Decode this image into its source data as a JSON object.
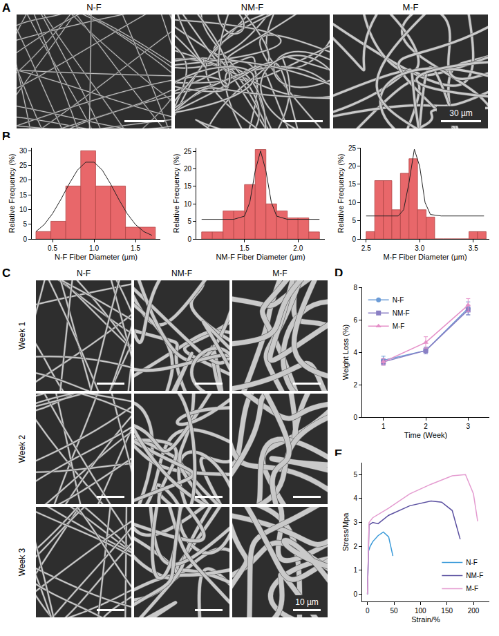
{
  "panel_A": {
    "label": "A",
    "titles": [
      "N-F",
      "NM-F",
      "M-F"
    ],
    "scale_bar": "30 µm"
  },
  "panel_C": {
    "label": "C",
    "titles": [
      "N-F",
      "NM-F",
      "M-F"
    ],
    "rows": [
      "Week 1",
      "Week 2",
      "Week 3"
    ],
    "scale_bar": "10 µm"
  },
  "chart_data": [
    {
      "panel": "B",
      "type": "histogram",
      "x_label": "N-F Fiber Diameter (µm)",
      "y_label": "Relative Frequency (%)",
      "bins": [
        0.3,
        0.48,
        0.66,
        0.84,
        1.02,
        1.2,
        1.38,
        1.56,
        1.74
      ],
      "counts": [
        2.5,
        6,
        18,
        30,
        18,
        18,
        4,
        4
      ],
      "color": "#e8676a",
      "fit": {
        "x": [
          0.3,
          0.4,
          0.5,
          0.6,
          0.7,
          0.8,
          0.9,
          1.0,
          1.1,
          1.2,
          1.3,
          1.4,
          1.5,
          1.6,
          1.7
        ],
        "values": [
          2.5,
          4.9,
          8.6,
          13.4,
          18.7,
          23.4,
          26.1,
          26.1,
          23.4,
          18.7,
          13.4,
          8.6,
          4.9,
          2.5,
          1.2
        ]
      },
      "xlim": [
        0.25,
        1.8
      ],
      "xticks": [
        0.5,
        {
          "value": 1,
          "label": "1.0"
        },
        1.5
      ],
      "ylim": [
        0,
        31
      ],
      "yticks": [
        0,
        5,
        10,
        15,
        20,
        25,
        30
      ]
    },
    {
      "panel": "B",
      "type": "histogram",
      "x_label": "NM-F Fiber Diameter (µm)",
      "y_label": "Relative Frequency (%)",
      "bins": [
        1.1,
        1.2,
        1.3,
        1.4,
        1.5,
        1.6,
        1.7,
        1.8,
        1.9,
        2.0,
        2.1,
        2.2
      ],
      "counts": [
        2,
        2,
        8,
        8,
        15.5,
        25.5,
        10,
        8,
        6,
        6,
        2
      ],
      "color": "#e8676a",
      "fit": {
        "x": [
          1.1,
          1.3,
          1.4,
          1.5,
          1.55,
          1.6,
          1.65,
          1.7,
          1.75,
          1.8,
          1.9,
          2.0,
          2.2
        ],
        "values": [
          5.6,
          5.6,
          5.6,
          6.5,
          10.5,
          19.4,
          25.1,
          19.4,
          10.5,
          6.5,
          5.6,
          5.6,
          5.6
        ]
      },
      "xlim": [
        1.05,
        2.25
      ],
      "xticks": [
        1.5,
        {
          "value": 2,
          "label": "2.0"
        }
      ],
      "ylim": [
        0,
        26
      ],
      "yticks": [
        0,
        5,
        10,
        15,
        20,
        25
      ]
    },
    {
      "panel": "B",
      "type": "histogram",
      "x_label": "M-F Fiber Diameter (µm)",
      "y_label": "Relative Frequency (%)",
      "bins": [
        2.5,
        2.58,
        2.66,
        2.74,
        2.82,
        2.9,
        2.98,
        3.06,
        3.14,
        3.22,
        3.3,
        3.38,
        3.46,
        3.54,
        3.62
      ],
      "counts": [
        2,
        16,
        16,
        8,
        18,
        22,
        8,
        6,
        0,
        0,
        0,
        0,
        2,
        2
      ],
      "color": "#e8676a",
      "fit": {
        "x": [
          2.5,
          2.7,
          2.8,
          2.85,
          2.9,
          2.95,
          3.0,
          3.05,
          3.1,
          3.2,
          3.4,
          3.6
        ],
        "values": [
          6.3,
          6.3,
          6.3,
          8.0,
          15.4,
          24.6,
          19.9,
          10.0,
          6.7,
          6.3,
          6.3,
          6.3
        ]
      },
      "xlim": [
        2.45,
        3.65
      ],
      "xticks": [
        2.5,
        {
          "value": 3,
          "label": "3.0"
        },
        3.5
      ],
      "ylim": [
        0,
        25
      ],
      "yticks": [
        0,
        5,
        10,
        15,
        20,
        25
      ]
    },
    {
      "panel": "D",
      "type": "line",
      "x_label": "Time (Week)",
      "y_label": "Weight Loss (%)",
      "x": [
        1,
        2,
        3
      ],
      "series": [
        {
          "name": "N-F",
          "color": "#6b9bd6",
          "marker": "circle",
          "values": [
            3.5,
            4.1,
            6.7
          ],
          "error": [
            0.25,
            0.2,
            0.4
          ]
        },
        {
          "name": "NM-F",
          "color": "#8a7fc4",
          "marker": "square",
          "values": [
            3.4,
            4.1,
            6.6
          ],
          "error": [
            0.2,
            0.2,
            0.3
          ]
        },
        {
          "name": "M-F",
          "color": "#e58fc8",
          "marker": "triangle",
          "values": [
            3.4,
            4.6,
            6.9
          ],
          "error": [
            0.2,
            0.35,
            0.4
          ]
        }
      ],
      "xlim": [
        0.5,
        3.5
      ],
      "xticks": [
        1,
        2,
        3
      ],
      "ylim": [
        0,
        8
      ],
      "yticks": [
        0,
        2,
        4,
        6,
        8
      ],
      "legend": "top left"
    },
    {
      "panel": "E",
      "type": "line",
      "x_label": "Strain/%",
      "y_label": "Stress/Mpa",
      "series": [
        {
          "name": "N-F",
          "color": "#3a9ad9",
          "x": [
            0,
            2,
            5,
            10,
            20,
            30,
            40,
            48
          ],
          "values": [
            0,
            1.8,
            2.0,
            2.2,
            2.45,
            2.6,
            2.4,
            1.6
          ]
        },
        {
          "name": "NM-F",
          "color": "#5a4fa0",
          "x": [
            0,
            3,
            10,
            20,
            40,
            80,
            120,
            140,
            160,
            175
          ],
          "values": [
            0,
            2.9,
            3.0,
            2.95,
            3.3,
            3.7,
            3.9,
            3.85,
            3.5,
            2.3
          ]
        },
        {
          "name": "M-F",
          "color": "#e49bd0",
          "x": [
            0,
            3,
            10,
            40,
            80,
            120,
            160,
            185,
            200,
            208
          ],
          "values": [
            0,
            3.0,
            3.2,
            3.6,
            4.2,
            4.6,
            4.95,
            5.0,
            4.2,
            3.05
          ]
        }
      ],
      "xlim": [
        -10,
        230
      ],
      "xticks": [
        0,
        50,
        100,
        150,
        200
      ],
      "ylim": [
        -0.3,
        5.5
      ],
      "yticks": [
        0,
        1,
        2,
        3,
        4,
        5
      ],
      "legend": "bottom right"
    }
  ]
}
